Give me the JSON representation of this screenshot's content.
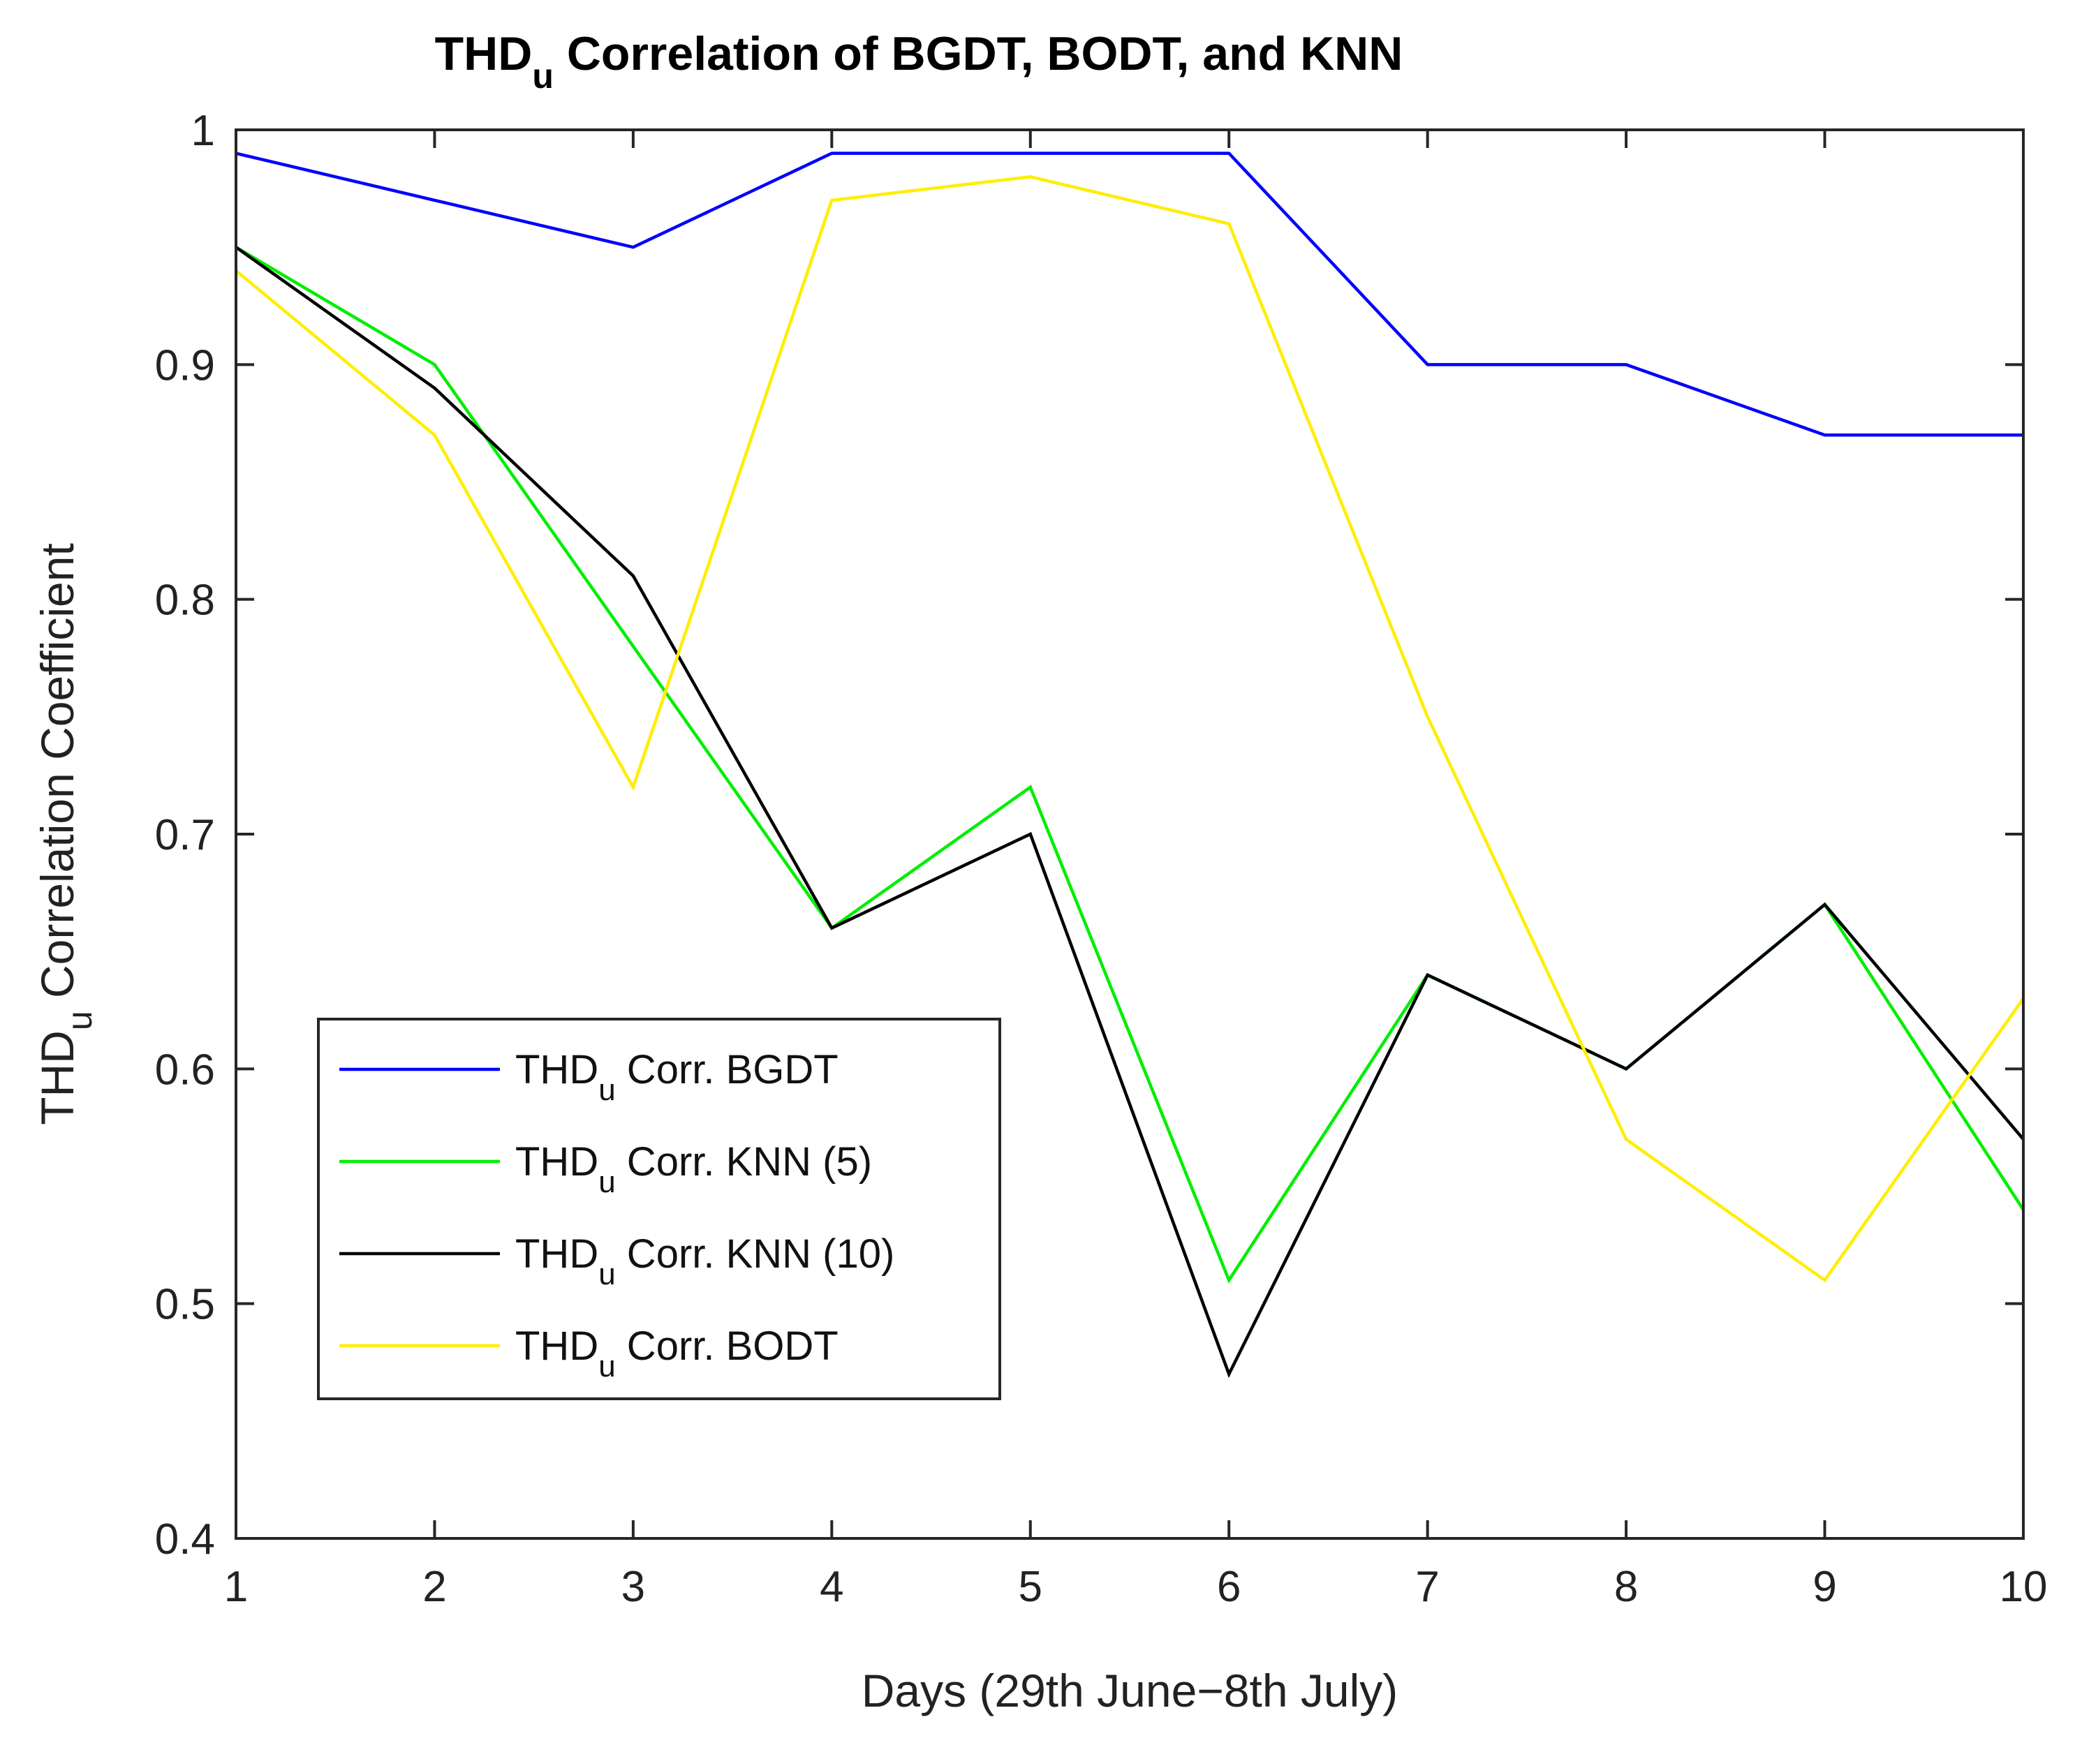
{
  "chart_data": {
    "type": "line",
    "title": {
      "main": "THD",
      "sub": "u",
      "rest": " Correlation of BGDT, BODT, and KNN"
    },
    "xlabel": "Days (29th June−8th July)",
    "ylabel": {
      "main": "THD",
      "sub": "u",
      "rest": " Correlation Coefficient"
    },
    "xlim": [
      1,
      10
    ],
    "ylim": [
      0.4,
      1
    ],
    "x": [
      1,
      2,
      3,
      4,
      5,
      6,
      7,
      8,
      9,
      10
    ],
    "xticks": [
      "1",
      "2",
      "3",
      "4",
      "5",
      "6",
      "7",
      "8",
      "9",
      "10"
    ],
    "yticks": [
      {
        "value": 0.4,
        "label": "0.4"
      },
      {
        "value": 0.5,
        "label": "0.5"
      },
      {
        "value": 0.6,
        "label": "0.6"
      },
      {
        "value": 0.7,
        "label": "0.7"
      },
      {
        "value": 0.8,
        "label": "0.8"
      },
      {
        "value": 0.9,
        "label": "0.9"
      },
      {
        "value": 1.0,
        "label": "1"
      }
    ],
    "legend_position": "lower-left",
    "series": [
      {
        "id": "bgdt",
        "name_main": "THD",
        "name_sub": "u",
        "name_rest": " Corr. BGDT",
        "color": "#0000ff",
        "values": [
          0.99,
          0.97,
          0.95,
          0.99,
          0.99,
          0.99,
          0.9,
          0.9,
          0.87,
          0.87
        ]
      },
      {
        "id": "knn5",
        "name_main": "THD",
        "name_sub": "u",
        "name_rest": " Corr. KNN (5)",
        "color": "#00ee00",
        "values": [
          0.95,
          0.9,
          0.78,
          0.66,
          0.72,
          0.51,
          0.64,
          0.6,
          0.67,
          0.54
        ]
      },
      {
        "id": "knn10",
        "name_main": "THD",
        "name_sub": "u",
        "name_rest": " Corr. KNN (10)",
        "color": "#000000",
        "values": [
          0.95,
          0.89,
          0.81,
          0.66,
          0.7,
          0.47,
          0.64,
          0.6,
          0.67,
          0.57
        ]
      },
      {
        "id": "bodt",
        "name_main": "THD",
        "name_sub": "u",
        "name_rest": " Corr. BODT",
        "color": "#ffee00",
        "values": [
          0.94,
          0.87,
          0.72,
          0.97,
          0.98,
          0.96,
          0.75,
          0.57,
          0.51,
          0.63
        ]
      }
    ]
  }
}
